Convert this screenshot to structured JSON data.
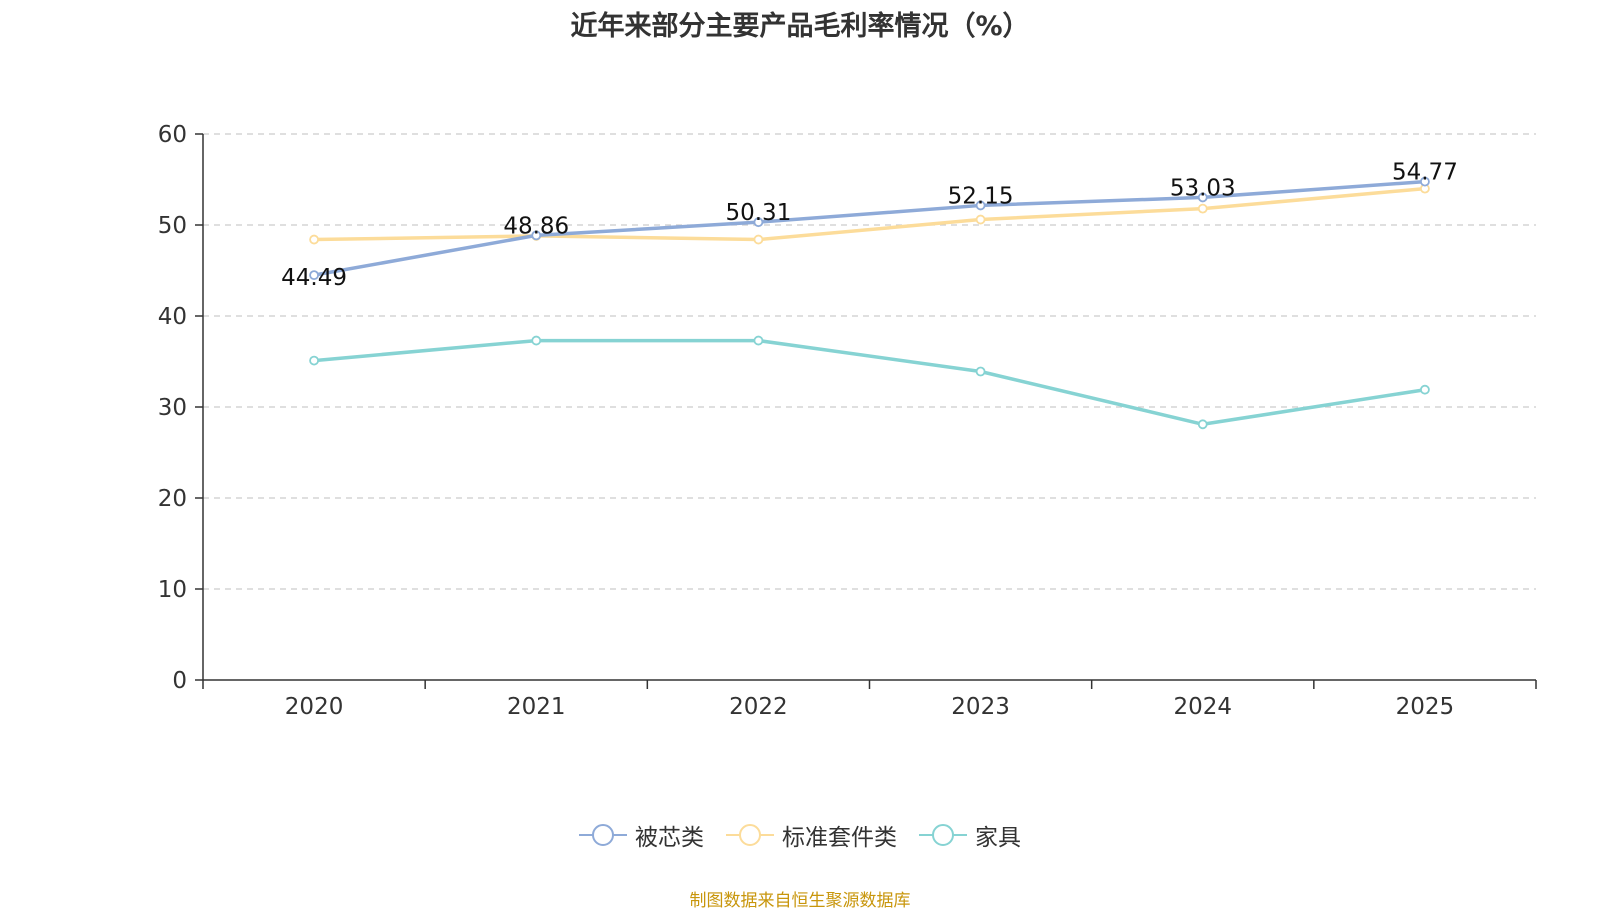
{
  "chart_data": {
    "type": "line",
    "title": "近年来部分主要产品毛利率情况（%）",
    "categories": [
      "2020",
      "2021",
      "2022",
      "2023",
      "2024",
      "2025"
    ],
    "ylim": [
      0,
      60
    ],
    "yticks": [
      "0",
      "10",
      "20",
      "30",
      "40",
      "50",
      "60"
    ],
    "grid": true,
    "legend_position": "bottom",
    "series": [
      {
        "name": "被芯类",
        "color": "#8eaad8",
        "values": [
          44.49,
          48.86,
          50.31,
          52.15,
          53.03,
          54.77
        ],
        "labels": [
          "44.49",
          "48.86",
          "50.31",
          "52.15",
          "53.03",
          "54.77"
        ]
      },
      {
        "name": "标准套件类",
        "color": "#fcdc9a",
        "values": [
          48.4,
          48.8,
          48.4,
          50.6,
          51.8,
          54.0
        ],
        "labels": []
      },
      {
        "name": "家具",
        "color": "#86d3d3",
        "values": [
          35.1,
          37.3,
          37.3,
          33.9,
          28.1,
          31.9
        ],
        "labels": []
      }
    ]
  },
  "footer": {
    "source": "制图数据来自恒生聚源数据库"
  }
}
